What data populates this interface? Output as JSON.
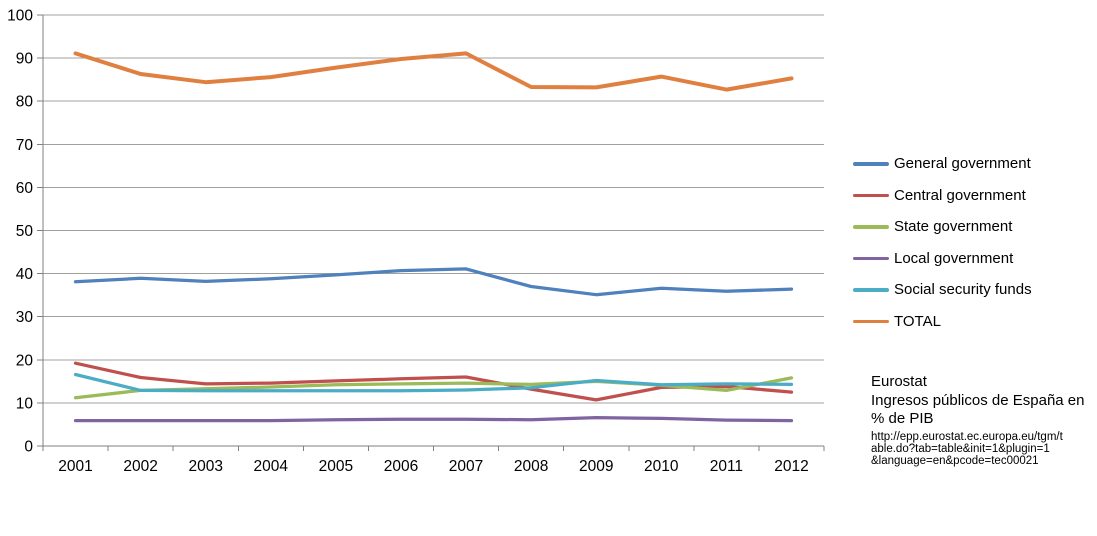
{
  "chart_data": {
    "type": "line",
    "categories": [
      "2001",
      "2002",
      "2003",
      "2004",
      "2005",
      "2006",
      "2007",
      "2008",
      "2009",
      "2010",
      "2011",
      "2012"
    ],
    "series": [
      {
        "name": "General government",
        "color": "#4F81BD",
        "values": [
          38.1,
          38.9,
          38.2,
          38.8,
          39.7,
          40.7,
          41.1,
          37.0,
          35.1,
          36.6,
          35.9,
          36.4
        ]
      },
      {
        "name": "Central government",
        "color": "#C0504D",
        "values": [
          19.2,
          15.9,
          14.4,
          14.6,
          15.1,
          15.6,
          16.0,
          13.2,
          10.7,
          13.6,
          13.8,
          12.5
        ]
      },
      {
        "name": "State government",
        "color": "#9BBB59",
        "values": [
          11.2,
          12.9,
          13.3,
          13.7,
          14.2,
          14.4,
          14.6,
          14.3,
          15.0,
          14.1,
          12.9,
          15.8
        ]
      },
      {
        "name": "Local government",
        "color": "#8064A2",
        "values": [
          5.9,
          5.9,
          5.9,
          5.9,
          6.1,
          6.2,
          6.2,
          6.1,
          6.6,
          6.4,
          6.0,
          5.9
        ]
      },
      {
        "name": "Social security funds",
        "color": "#4BACC6",
        "values": [
          16.6,
          12.9,
          12.8,
          12.8,
          12.8,
          12.8,
          13.0,
          13.5,
          15.2,
          14.2,
          14.4,
          14.3
        ]
      },
      {
        "name": "TOTAL",
        "color": "#E08040",
        "values": [
          91.1,
          86.3,
          84.4,
          85.6,
          87.8,
          89.8,
          91.1,
          83.3,
          83.2,
          85.7,
          82.7,
          85.3
        ]
      }
    ],
    "ylim": [
      0,
      100
    ],
    "y_ticks": [
      0,
      10,
      20,
      30,
      40,
      50,
      60,
      70,
      80,
      90,
      100
    ],
    "xlabel": "",
    "ylabel": "",
    "grid": true,
    "legend_position": "right"
  },
  "source_note": {
    "org": "Eurostat",
    "title_line1": "Ingresos públicos de España en",
    "title_line2": "% de PIB",
    "url_lines": [
      "http://epp.eurostat.ec.europa.eu/tgm/t",
      "able.do?tab=table&init=1&plugin=1",
      "&language=en&pcode=tec00021"
    ]
  },
  "colors": {
    "background": "#FFFFFF",
    "gridline": "#A0A0A0",
    "axis": "#808080",
    "text": "#000000"
  }
}
